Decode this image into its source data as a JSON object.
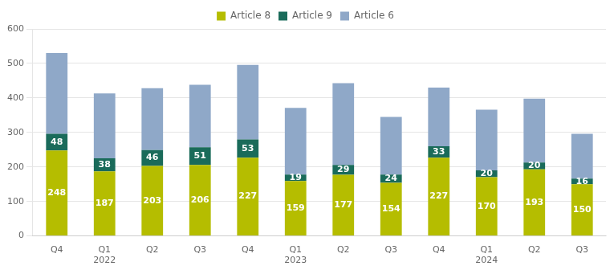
{
  "chart_data": {
    "type": "bar",
    "stacked": true,
    "grid": true,
    "legend": "top",
    "categories": [
      "Q4",
      "Q1\n2022",
      "Q2",
      "Q3",
      "Q4",
      "Q1\n2023",
      "Q2",
      "Q3",
      "Q4",
      "Q1\n2024",
      "Q2",
      "Q3"
    ],
    "series": [
      {
        "name": "Article 8",
        "color": "#b5bd00",
        "data_labels": true,
        "values": [
          248,
          187,
          203,
          206,
          227,
          159,
          177,
          154,
          227,
          170,
          193,
          150
        ]
      },
      {
        "name": "Article 9",
        "color": "#1a6b5a",
        "data_labels": true,
        "values": [
          48,
          38,
          46,
          51,
          53,
          19,
          29,
          24,
          33,
          20,
          20,
          16
        ]
      },
      {
        "name": "Article 6",
        "color": "#8fa8c8",
        "data_labels": false,
        "values": [
          234,
          188,
          179,
          181,
          216,
          193,
          237,
          167,
          170,
          176,
          185,
          130
        ]
      }
    ],
    "ylim": [
      0,
      600
    ],
    "yticks": [
      0,
      100,
      200,
      300,
      400,
      500,
      600
    ]
  }
}
